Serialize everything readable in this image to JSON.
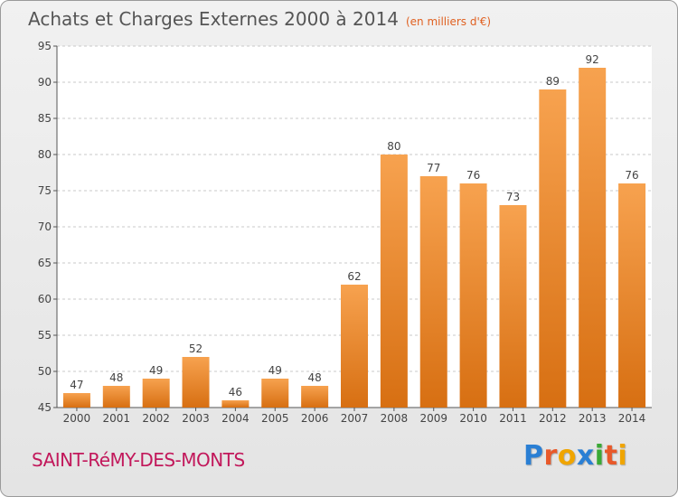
{
  "title": "Achats et Charges Externes 2000 à 2014",
  "subtitle": "(en milliers d'€)",
  "commune": "SAINT-RéMY-DES-MONTS",
  "brand": {
    "letters": [
      "P",
      "r",
      "o",
      "x",
      "i",
      "t",
      "i"
    ],
    "colors": [
      "#2a7fd4",
      "#e8592a",
      "#f0a500",
      "#2a7fd4",
      "#3aa935",
      "#e8592a",
      "#f0a500"
    ]
  },
  "colors": {
    "bar_top": "#f7a24f",
    "bar_bottom": "#d76f12",
    "grid": "#c8c8c8",
    "axis": "#555555",
    "text": "#444444"
  },
  "chart_data": {
    "type": "bar",
    "title": "Achats et Charges Externes 2000 à 2014",
    "xlabel": "",
    "ylabel": "",
    "ylim": [
      45,
      95
    ],
    "yticks": [
      45,
      50,
      55,
      60,
      65,
      70,
      75,
      80,
      85,
      90,
      95
    ],
    "categories": [
      "2000",
      "2001",
      "2002",
      "2003",
      "2004",
      "2005",
      "2006",
      "2007",
      "2008",
      "2009",
      "2010",
      "2011",
      "2012",
      "2013",
      "2014"
    ],
    "values": [
      47,
      48,
      49,
      52,
      46,
      49,
      48,
      62,
      80,
      77,
      76,
      73,
      89,
      92,
      76
    ],
    "grid": true
  }
}
